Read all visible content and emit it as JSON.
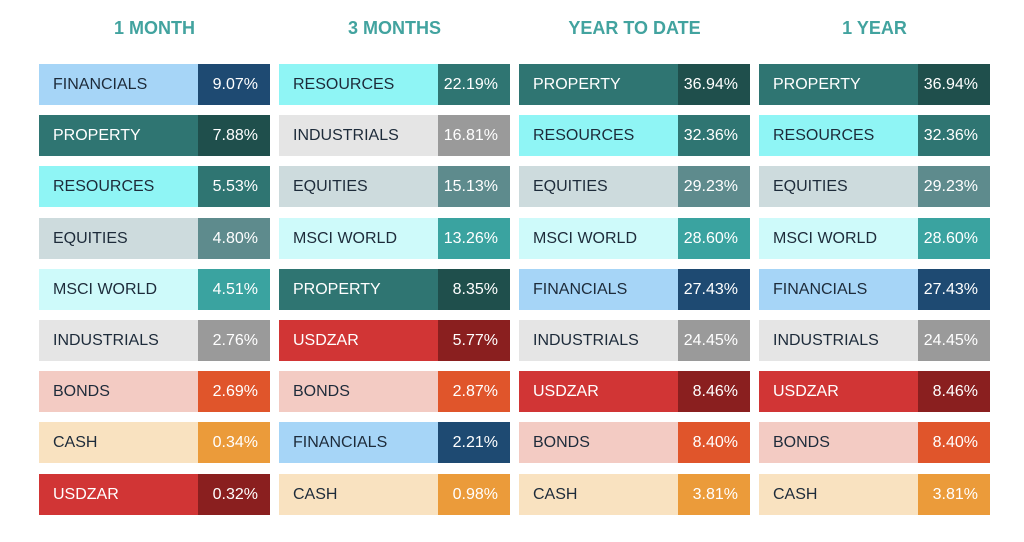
{
  "columns": [
    {
      "title": "1 MONTH",
      "rows": [
        {
          "label": "FINANCIALS",
          "value": "9.07%",
          "label_color": "#a6d5f7",
          "value_color": "#1e4a72"
        },
        {
          "label": "PROPERTY",
          "value": "7.88%",
          "label_color": "#2f7572",
          "value_color": "#1f4f4c"
        },
        {
          "label": "RESOURCES",
          "value": "5.53%",
          "label_color": "#8ff5f5",
          "value_color": "#2f7572"
        },
        {
          "label": "EQUITIES",
          "value": "4.80%",
          "label_color": "#cddbdd",
          "value_color": "#5e8b8d"
        },
        {
          "label": "MSCI WORLD",
          "value": "4.51%",
          "label_color": "#cefafa",
          "value_color": "#3aa3a0"
        },
        {
          "label": "INDUSTRIALS",
          "value": "2.76%",
          "label_color": "#e5e5e5",
          "value_color": "#9a9a9a"
        },
        {
          "label": "BONDS",
          "value": "2.69%",
          "label_color": "#f3cbc3",
          "value_color": "#e0552b"
        },
        {
          "label": "CASH",
          "value": "0.34%",
          "label_color": "#f9e2c0",
          "value_color": "#eb9b3a"
        },
        {
          "label": "USDZAR",
          "value": "0.32%",
          "label_color": "#d13535",
          "value_color": "#8a1f1f"
        }
      ]
    },
    {
      "title": "3 MONTHS",
      "rows": [
        {
          "label": "RESOURCES",
          "value": "22.19%",
          "label_color": "#8ff5f5",
          "value_color": "#2f7572"
        },
        {
          "label": "INDUSTRIALS",
          "value": "16.81%",
          "label_color": "#e5e5e5",
          "value_color": "#9a9a9a"
        },
        {
          "label": "EQUITIES",
          "value": "15.13%",
          "label_color": "#cddbdd",
          "value_color": "#5e8b8d"
        },
        {
          "label": "MSCI WORLD",
          "value": "13.26%",
          "label_color": "#cefafa",
          "value_color": "#3aa3a0"
        },
        {
          "label": "PROPERTY",
          "value": "8.35%",
          "label_color": "#2f7572",
          "value_color": "#1f4f4c"
        },
        {
          "label": "USDZAR",
          "value": "5.77%",
          "label_color": "#d13535",
          "value_color": "#8a1f1f"
        },
        {
          "label": "BONDS",
          "value": "2.87%",
          "label_color": "#f3cbc3",
          "value_color": "#e0552b"
        },
        {
          "label": "FINANCIALS",
          "value": "2.21%",
          "label_color": "#a6d5f7",
          "value_color": "#1e4a72"
        },
        {
          "label": "CASH",
          "value": "0.98%",
          "label_color": "#f9e2c0",
          "value_color": "#eb9b3a"
        }
      ]
    },
    {
      "title": "YEAR TO DATE",
      "rows": [
        {
          "label": "PROPERTY",
          "value": "36.94%",
          "label_color": "#2f7572",
          "value_color": "#1f4f4c"
        },
        {
          "label": "RESOURCES",
          "value": "32.36%",
          "label_color": "#8ff5f5",
          "value_color": "#2f7572"
        },
        {
          "label": "EQUITIES",
          "value": "29.23%",
          "label_color": "#cddbdd",
          "value_color": "#5e8b8d"
        },
        {
          "label": "MSCI WORLD",
          "value": "28.60%",
          "label_color": "#cefafa",
          "value_color": "#3aa3a0"
        },
        {
          "label": "FINANCIALS",
          "value": "27.43%",
          "label_color": "#a6d5f7",
          "value_color": "#1e4a72"
        },
        {
          "label": "INDUSTRIALS",
          "value": "24.45%",
          "label_color": "#e5e5e5",
          "value_color": "#9a9a9a"
        },
        {
          "label": "USDZAR",
          "value": "8.46%",
          "label_color": "#d13535",
          "value_color": "#8a1f1f"
        },
        {
          "label": "BONDS",
          "value": "8.40%",
          "label_color": "#f3cbc3",
          "value_color": "#e0552b"
        },
        {
          "label": "CASH",
          "value": "3.81%",
          "label_color": "#f9e2c0",
          "value_color": "#eb9b3a"
        }
      ]
    },
    {
      "title": "1 YEAR",
      "rows": [
        {
          "label": "PROPERTY",
          "value": "36.94%",
          "label_color": "#2f7572",
          "value_color": "#1f4f4c"
        },
        {
          "label": "RESOURCES",
          "value": "32.36%",
          "label_color": "#8ff5f5",
          "value_color": "#2f7572"
        },
        {
          "label": "EQUITIES",
          "value": "29.23%",
          "label_color": "#cddbdd",
          "value_color": "#5e8b8d"
        },
        {
          "label": "MSCI WORLD",
          "value": "28.60%",
          "label_color": "#cefafa",
          "value_color": "#3aa3a0"
        },
        {
          "label": "FINANCIALS",
          "value": "27.43%",
          "label_color": "#a6d5f7",
          "value_color": "#1e4a72"
        },
        {
          "label": "INDUSTRIALS",
          "value": "24.45%",
          "label_color": "#e5e5e5",
          "value_color": "#9a9a9a"
        },
        {
          "label": "USDZAR",
          "value": "8.46%",
          "label_color": "#d13535",
          "value_color": "#8a1f1f"
        },
        {
          "label": "BONDS",
          "value": "8.40%",
          "label_color": "#f3cbc3",
          "value_color": "#e0552b"
        },
        {
          "label": "CASH",
          "value": "3.81%",
          "label_color": "#f9e2c0",
          "value_color": "#eb9b3a"
        }
      ]
    }
  ]
}
